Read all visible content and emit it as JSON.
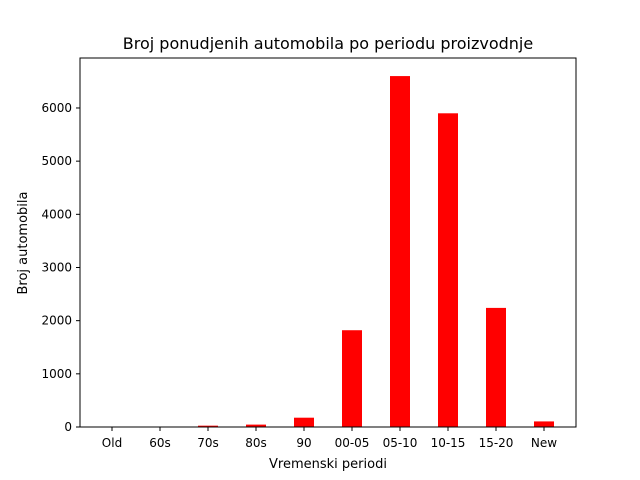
{
  "chart_data": {
    "type": "bar",
    "title": "Broj ponudjenih automobila po periodu proizvodnje",
    "xlabel": "Vremenski periodi",
    "ylabel": "Broj automobila",
    "categories": [
      "Old",
      "60s",
      "70s",
      "80s",
      "90",
      "00-05",
      "05-10",
      "10-15",
      "15-20",
      "New"
    ],
    "values": [
      3,
      5,
      25,
      45,
      175,
      1820,
      6600,
      5900,
      2240,
      105
    ],
    "ylim": [
      0,
      6940
    ],
    "yticks": [
      0,
      1000,
      2000,
      3000,
      4000,
      5000,
      6000
    ],
    "bar_color": "#ff0000",
    "grid": false
  }
}
